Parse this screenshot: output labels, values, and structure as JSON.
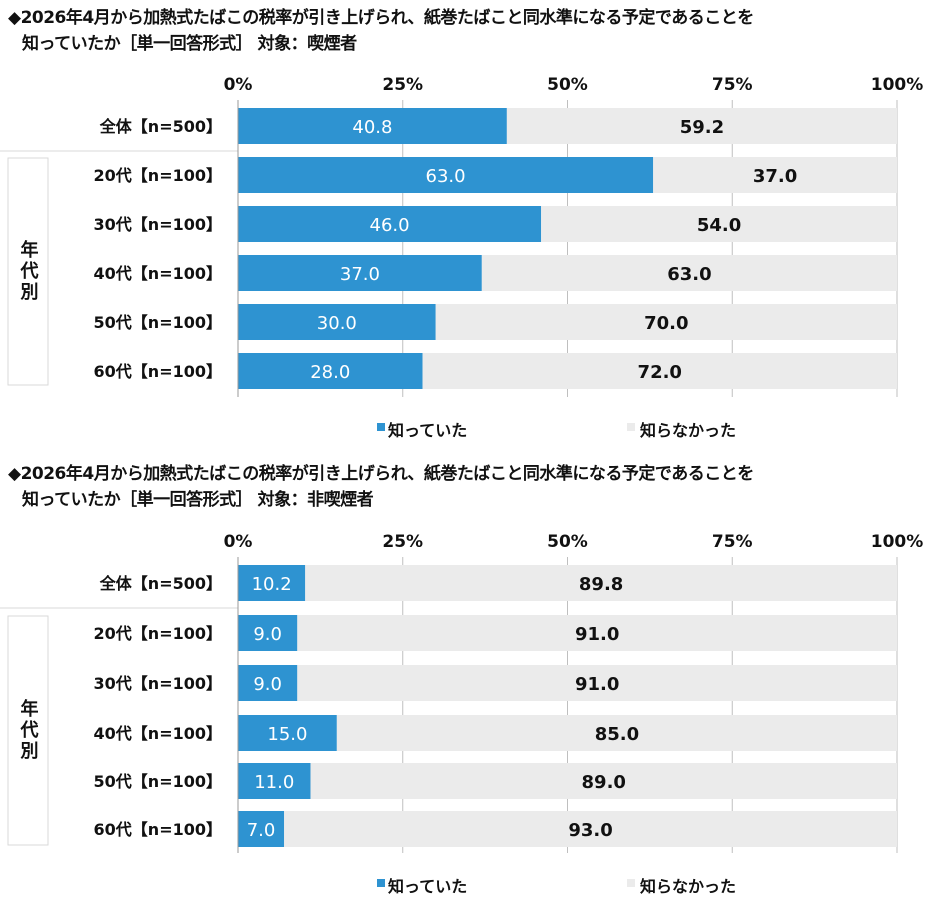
{
  "colors": {
    "known": "#2e93d1",
    "unknown": "#ebebeb",
    "axis": "#bfbfbf"
  },
  "chart_data": [
    {
      "type": "bar",
      "stacked": true,
      "orientation": "horizontal",
      "title_line1": "◆2026年4月から加熱式たばこの税率が引き上げられ、紙巻たばこと同水準になる予定であることを",
      "title_line2": "知っていたか［単一回答形式］ 対象：喫煙者",
      "xlim": [
        0,
        100
      ],
      "xticks": [
        "0%",
        "25%",
        "50%",
        "75%",
        "100%"
      ],
      "grid": true,
      "group_label": "年代別",
      "legend_position": "bottom",
      "categories": [
        "全体【n=500】",
        "20代【n=100】",
        "30代【n=100】",
        "40代【n=100】",
        "50代【n=100】",
        "60代【n=100】"
      ],
      "series": [
        {
          "name": "知っていた",
          "values": [
            "40.8",
            "63.0",
            "46.0",
            "37.0",
            "30.0",
            "28.0"
          ]
        },
        {
          "name": "知らなかった",
          "values": [
            "59.2",
            "37.0",
            "54.0",
            "63.0",
            "70.0",
            "72.0"
          ]
        }
      ]
    },
    {
      "type": "bar",
      "stacked": true,
      "orientation": "horizontal",
      "title_line1": "◆2026年4月から加熱式たばこの税率が引き上げられ、紙巻たばこと同水準になる予定であることを",
      "title_line2": "知っていたか［単一回答形式］ 対象：非喫煙者",
      "xlim": [
        0,
        100
      ],
      "xticks": [
        "0%",
        "25%",
        "50%",
        "75%",
        "100%"
      ],
      "grid": true,
      "group_label": "年代別",
      "legend_position": "bottom",
      "categories": [
        "全体【n=500】",
        "20代【n=100】",
        "30代【n=100】",
        "40代【n=100】",
        "50代【n=100】",
        "60代【n=100】"
      ],
      "series": [
        {
          "name": "知っていた",
          "values": [
            "10.2",
            "9.0",
            "9.0",
            "15.0",
            "11.0",
            "7.0"
          ]
        },
        {
          "name": "知らなかった",
          "values": [
            "89.8",
            "91.0",
            "91.0",
            "85.0",
            "89.0",
            "93.0"
          ]
        }
      ]
    }
  ]
}
